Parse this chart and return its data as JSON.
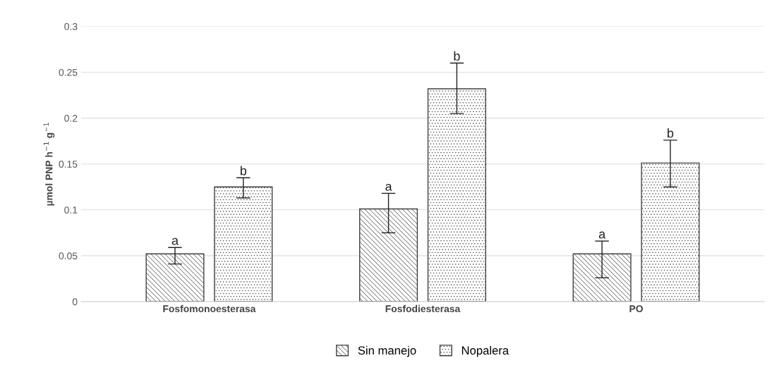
{
  "chart_data": {
    "type": "bar",
    "ylabel": "µmol PNP h$^{−1}$ g$^{−1}$",
    "categories": [
      "Fosfomonoesterasa",
      "Fosfodiesterasa",
      "PO"
    ],
    "series": [
      {
        "name": "Sin manejo",
        "color": "#404040",
        "values": [
          0.052,
          0.101,
          0.052
        ],
        "errors": [
          [
            0.041,
            0.059
          ],
          [
            0.075,
            0.118
          ],
          [
            0.026,
            0.066
          ]
        ],
        "value_labels": [
          "a",
          "a",
          "a"
        ]
      },
      {
        "name": "Nopalera",
        "color": "#404040",
        "values": [
          0.125,
          0.232,
          0.151
        ],
        "errors": [
          [
            0.113,
            0.135
          ],
          [
            0.205,
            0.26
          ],
          [
            0.125,
            0.176
          ]
        ],
        "value_labels": [
          "b",
          "b",
          "b"
        ]
      }
    ],
    "ylim": [
      0,
      0.3
    ],
    "yticks": [
      0,
      0.05,
      0.1,
      0.15,
      0.2,
      0.25,
      0.3
    ],
    "grid": "y",
    "legend": "bottom"
  }
}
